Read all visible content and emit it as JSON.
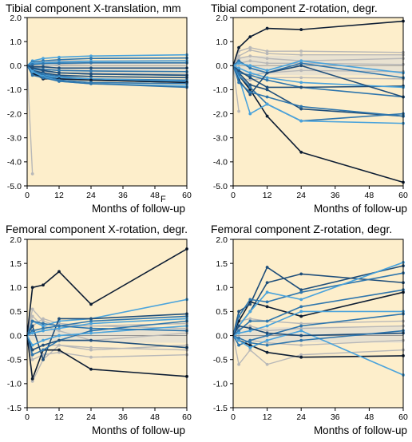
{
  "colors": {
    "plot_bg": "#fdeecb",
    "band": "#e7e0d2",
    "gray": "#b8b8b8",
    "navy": "#0d1d33",
    "dark_blue": "#1f4e7a",
    "mid_blue": "#2f76ad",
    "light_blue": "#4aa3dc"
  },
  "stray_mark": "F",
  "chart_data": [
    {
      "type": "line",
      "title": "Tibial component X-translation, mm",
      "xlabel": "Months of follow-up",
      "ylabel": "",
      "xlim": [
        0,
        60
      ],
      "ylim": [
        -5.0,
        2.0
      ],
      "xticks": [
        0,
        12,
        24,
        36,
        48,
        60
      ],
      "yticks": [
        "2.0",
        "1.0",
        "0.0",
        "-1.0",
        "-2.0",
        "-3.0",
        "-4.0",
        "-5.0"
      ],
      "x": [
        0,
        2,
        6,
        12,
        24,
        60
      ],
      "band": {
        "upper": [
          0.05,
          0.1,
          0.12,
          0.13,
          0.13,
          0.14
        ],
        "lower": [
          -0.05,
          -0.15,
          -0.2,
          -0.22,
          -0.23,
          -0.24
        ]
      },
      "series": [
        {
          "color": "gray",
          "values": [
            0,
            -4.5,
            null,
            null,
            null,
            null
          ]
        },
        {
          "color": "gray",
          "values": [
            0,
            0.12,
            0.15,
            0.2,
            0.2,
            0.22
          ]
        },
        {
          "color": "gray",
          "values": [
            0,
            -0.1,
            -0.05,
            0.05,
            0.1,
            0.1
          ]
        },
        {
          "color": "gray",
          "values": [
            0,
            -0.2,
            -0.25,
            -0.3,
            -0.3,
            -0.35
          ]
        },
        {
          "color": "light_blue",
          "values": [
            0,
            0.2,
            0.3,
            0.35,
            0.4,
            0.45
          ]
        },
        {
          "color": "mid_blue",
          "values": [
            0,
            0.15,
            0.2,
            0.25,
            0.3,
            0.32
          ]
        },
        {
          "color": "light_blue",
          "values": [
            0,
            0.1,
            0.12,
            0.15,
            0.18,
            0.2
          ]
        },
        {
          "color": "mid_blue",
          "values": [
            0,
            0.05,
            0.08,
            0.1,
            0.12,
            0.12
          ]
        },
        {
          "color": "dark_blue",
          "values": [
            0,
            -0.05,
            -0.05,
            -0.1,
            -0.1,
            -0.1
          ]
        },
        {
          "color": "mid_blue",
          "values": [
            0,
            -0.1,
            -0.15,
            -0.2,
            -0.22,
            -0.25
          ]
        },
        {
          "color": "light_blue",
          "values": [
            0,
            -0.15,
            -0.2,
            -0.3,
            -0.35,
            -0.4
          ]
        },
        {
          "color": "dark_blue",
          "values": [
            0,
            -0.2,
            -0.3,
            -0.4,
            -0.45,
            -0.5
          ]
        },
        {
          "color": "mid_blue",
          "values": [
            0,
            -0.25,
            -0.35,
            -0.45,
            -0.55,
            -0.6
          ]
        },
        {
          "color": "light_blue",
          "values": [
            0,
            -0.3,
            -0.4,
            -0.5,
            -0.55,
            -0.65
          ]
        },
        {
          "color": "dark_blue",
          "values": [
            0,
            -0.35,
            -0.45,
            -0.55,
            -0.6,
            -0.7
          ]
        },
        {
          "color": "navy",
          "values": [
            0,
            -0.3,
            -0.55,
            -0.55,
            -0.6,
            -0.7
          ]
        },
        {
          "color": "mid_blue",
          "values": [
            0,
            -0.2,
            -0.4,
            -0.6,
            -0.7,
            -0.75
          ]
        },
        {
          "color": "light_blue",
          "values": [
            0,
            -0.25,
            -0.45,
            -0.65,
            -0.75,
            -0.85
          ]
        },
        {
          "color": "dark_blue",
          "values": [
            0,
            -0.1,
            -0.2,
            -0.3,
            -0.35,
            -0.4
          ]
        },
        {
          "color": "mid_blue",
          "values": [
            0,
            -0.4,
            -0.5,
            -0.65,
            -0.75,
            -0.9
          ]
        }
      ]
    },
    {
      "type": "line",
      "title": "Tibial component Z-rotation, degr.",
      "xlabel": "Months of follow-up",
      "ylabel": "",
      "xlim": [
        0,
        60
      ],
      "ylim": [
        -5.0,
        2.0
      ],
      "xticks": [
        0,
        12,
        24,
        36,
        48,
        60
      ],
      "yticks": [
        "2.0",
        "1.0",
        "0.0",
        "-1.0",
        "-2.0",
        "-3.0",
        "-4.0",
        "-5.0"
      ],
      "x": [
        0,
        2,
        6,
        12,
        24,
        60
      ],
      "band": {
        "upper": [
          0.1,
          0.35,
          0.4,
          0.42,
          0.42,
          0.44
        ],
        "lower": [
          -0.1,
          -0.3,
          -0.35,
          -0.38,
          -0.4,
          -0.4
        ]
      },
      "series": [
        {
          "color": "gray",
          "values": [
            0,
            -1.9,
            null,
            null,
            null,
            null
          ]
        },
        {
          "color": "gray",
          "values": [
            0,
            0.6,
            0.75,
            0.6,
            0.6,
            0.55
          ]
        },
        {
          "color": "gray",
          "values": [
            0,
            0.4,
            0.65,
            0.5,
            0.45,
            0.45
          ]
        },
        {
          "color": "gray",
          "values": [
            0,
            0.3,
            0.4,
            0.3,
            0.2,
            0.3
          ]
        },
        {
          "color": "gray",
          "values": [
            0,
            -0.3,
            -0.4,
            -0.3,
            -0.2,
            -0.25
          ]
        },
        {
          "color": "gray",
          "values": [
            0,
            -0.5,
            -0.6,
            -0.5,
            -0.5,
            -0.55
          ]
        },
        {
          "color": "gray",
          "values": [
            0,
            0.1,
            0.2,
            0.1,
            0.1,
            0.05
          ]
        },
        {
          "color": "navy",
          "values": [
            0,
            0.75,
            1.2,
            1.55,
            1.5,
            1.85
          ]
        },
        {
          "color": "navy",
          "values": [
            0,
            -0.4,
            -1.0,
            -2.1,
            -3.6,
            -4.85
          ]
        },
        {
          "color": "dark_blue",
          "values": [
            0,
            -0.3,
            -0.8,
            -1.0,
            -1.8,
            -2.1
          ]
        },
        {
          "color": "mid_blue",
          "values": [
            0,
            -0.4,
            -0.9,
            -1.6,
            -2.3,
            -2.0
          ]
        },
        {
          "color": "light_blue",
          "values": [
            0,
            -0.5,
            -2.0,
            -1.6,
            -2.3,
            -2.4
          ]
        },
        {
          "color": "mid_blue",
          "values": [
            0,
            -0.3,
            -0.4,
            -0.6,
            -0.9,
            -1.3
          ]
        },
        {
          "color": "dark_blue",
          "values": [
            0,
            -0.2,
            -0.5,
            -0.9,
            -0.9,
            -0.85
          ]
        },
        {
          "color": "light_blue",
          "values": [
            0,
            -0.1,
            -0.3,
            -0.5,
            -0.7,
            -0.9
          ]
        },
        {
          "color": "mid_blue",
          "values": [
            0,
            0.2,
            -0.1,
            -0.3,
            0.1,
            -0.5
          ]
        },
        {
          "color": "dark_blue",
          "values": [
            0,
            -0.6,
            -1.2,
            -0.3,
            0.0,
            -1.3
          ]
        },
        {
          "color": "light_blue",
          "values": [
            0,
            0.1,
            0.0,
            -0.2,
            0.2,
            -0.3
          ]
        },
        {
          "color": "mid_blue",
          "values": [
            0,
            -0.7,
            -1.1,
            -1.3,
            -1.7,
            -2.1
          ]
        }
      ]
    },
    {
      "type": "line",
      "title": "Femoral component X-rotation, degr.",
      "xlabel": "Months of follow-up",
      "ylabel": "",
      "xlim": [
        0,
        60
      ],
      "ylim": [
        -1.5,
        2.0
      ],
      "xticks": [
        0,
        12,
        24,
        36,
        48,
        60
      ],
      "yticks": [
        "2.0",
        "1.5",
        "1.0",
        "0.5",
        "0.0",
        "-0.5",
        "-1.0",
        "-1.5"
      ],
      "x": [
        0,
        2,
        6,
        12,
        24,
        60
      ],
      "band": {
        "upper": [
          0.05,
          0.1,
          0.12,
          0.13,
          0.14,
          0.15
        ],
        "lower": [
          -0.05,
          -0.1,
          -0.12,
          -0.13,
          -0.14,
          -0.15
        ]
      },
      "series": [
        {
          "color": "gray",
          "values": [
            0,
            0.55,
            0.3,
            0.2,
            0.2,
            0.15
          ]
        },
        {
          "color": "gray",
          "values": [
            0,
            -0.95,
            -0.5,
            -0.2,
            -0.3,
            -0.2
          ]
        },
        {
          "color": "gray",
          "values": [
            0,
            0.4,
            0.2,
            0.1,
            -0.1,
            0.05
          ]
        },
        {
          "color": "gray",
          "values": [
            0,
            -0.3,
            -0.2,
            -0.2,
            -0.25,
            -0.3
          ]
        },
        {
          "color": "gray",
          "values": [
            0,
            0.2,
            0.35,
            0.25,
            0.2,
            0.25
          ]
        },
        {
          "color": "gray",
          "values": [
            0,
            -0.5,
            -0.4,
            -0.35,
            -0.45,
            -0.4
          ]
        },
        {
          "color": "navy",
          "values": [
            0,
            1.0,
            1.05,
            1.33,
            0.65,
            1.8
          ]
        },
        {
          "color": "navy",
          "values": [
            0,
            -0.9,
            -0.3,
            -0.3,
            -0.7,
            -0.85
          ]
        },
        {
          "color": "light_blue",
          "values": [
            0,
            0.3,
            0.2,
            0.3,
            0.35,
            0.75
          ]
        },
        {
          "color": "dark_blue",
          "values": [
            0,
            0.2,
            -0.5,
            0.35,
            0.35,
            0.45
          ]
        },
        {
          "color": "mid_blue",
          "values": [
            0,
            0.1,
            0.15,
            0.2,
            0.3,
            0.4
          ]
        },
        {
          "color": "light_blue",
          "values": [
            0,
            0.05,
            0.1,
            0.15,
            0.25,
            0.35
          ]
        },
        {
          "color": "mid_blue",
          "values": [
            0,
            -0.4,
            -0.3,
            -0.1,
            0.1,
            0.3
          ]
        },
        {
          "color": "dark_blue",
          "values": [
            0,
            -0.3,
            -0.2,
            -0.1,
            -0.1,
            -0.25
          ]
        },
        {
          "color": "light_blue",
          "values": [
            0,
            -0.2,
            -0.1,
            0.0,
            0.05,
            0.2
          ]
        },
        {
          "color": "mid_blue",
          "values": [
            0,
            0.3,
            0.25,
            0.2,
            0.15,
            0.1
          ]
        }
      ]
    },
    {
      "type": "line",
      "title": "Femoral component Z-rotation, degr.",
      "xlabel": "Months of follow-up",
      "ylabel": "",
      "xlim": [
        0,
        60
      ],
      "ylim": [
        -1.5,
        2.0
      ],
      "xticks": [
        0,
        12,
        24,
        36,
        48,
        60
      ],
      "yticks": [
        "2.0",
        "1.5",
        "1.0",
        "0.5",
        "0.0",
        "-0.5",
        "-1.0",
        "-1.5"
      ],
      "x": [
        0,
        2,
        6,
        12,
        24,
        60
      ],
      "band": {
        "upper": [
          0.05,
          0.12,
          0.15,
          0.17,
          0.18,
          0.2
        ],
        "lower": [
          -0.05,
          -0.1,
          -0.12,
          -0.13,
          -0.14,
          -0.15
        ]
      },
      "series": [
        {
          "color": "gray",
          "values": [
            0,
            -0.6,
            -0.3,
            -0.6,
            -0.4,
            -0.3
          ]
        },
        {
          "color": "gray",
          "values": [
            0,
            0.15,
            0.2,
            0.1,
            0.15,
            0.2
          ]
        },
        {
          "color": "gray",
          "values": [
            0,
            -0.2,
            -0.1,
            -0.15,
            -0.2,
            -0.1
          ]
        },
        {
          "color": "gray",
          "values": [
            0,
            0.3,
            0.35,
            0.3,
            0.25,
            0.3
          ]
        },
        {
          "color": "navy",
          "values": [
            0,
            0.3,
            0.7,
            0.6,
            0.4,
            0.9
          ]
        },
        {
          "color": "navy",
          "values": [
            0,
            -0.1,
            -0.2,
            -0.35,
            -0.45,
            -0.42
          ]
        },
        {
          "color": "dark_blue",
          "values": [
            0,
            0.5,
            0.65,
            1.42,
            0.95,
            1.45
          ]
        },
        {
          "color": "dark_blue",
          "values": [
            0,
            0.2,
            0.5,
            1.1,
            1.28,
            1.1
          ]
        },
        {
          "color": "mid_blue",
          "values": [
            0,
            0.4,
            0.75,
            0.7,
            0.9,
            1.3
          ]
        },
        {
          "color": "light_blue",
          "values": [
            0,
            0.2,
            0.5,
            0.9,
            0.75,
            1.52
          ]
        },
        {
          "color": "mid_blue",
          "values": [
            0,
            0.1,
            0.3,
            0.3,
            0.6,
            0.95
          ]
        },
        {
          "color": "light_blue",
          "values": [
            0,
            0.05,
            0.1,
            0.2,
            0.5,
            0.5
          ]
        },
        {
          "color": "mid_blue",
          "values": [
            0,
            -0.2,
            -0.1,
            0.0,
            0.2,
            0.45
          ]
        },
        {
          "color": "light_blue",
          "values": [
            0,
            -0.1,
            -0.25,
            -0.1,
            0.1,
            -0.82
          ]
        },
        {
          "color": "dark_blue",
          "values": [
            0,
            0.2,
            0.15,
            0.05,
            0.0,
            0.05
          ]
        },
        {
          "color": "mid_blue",
          "values": [
            0,
            -0.05,
            -0.15,
            -0.2,
            -0.1,
            0.1
          ]
        }
      ]
    }
  ]
}
